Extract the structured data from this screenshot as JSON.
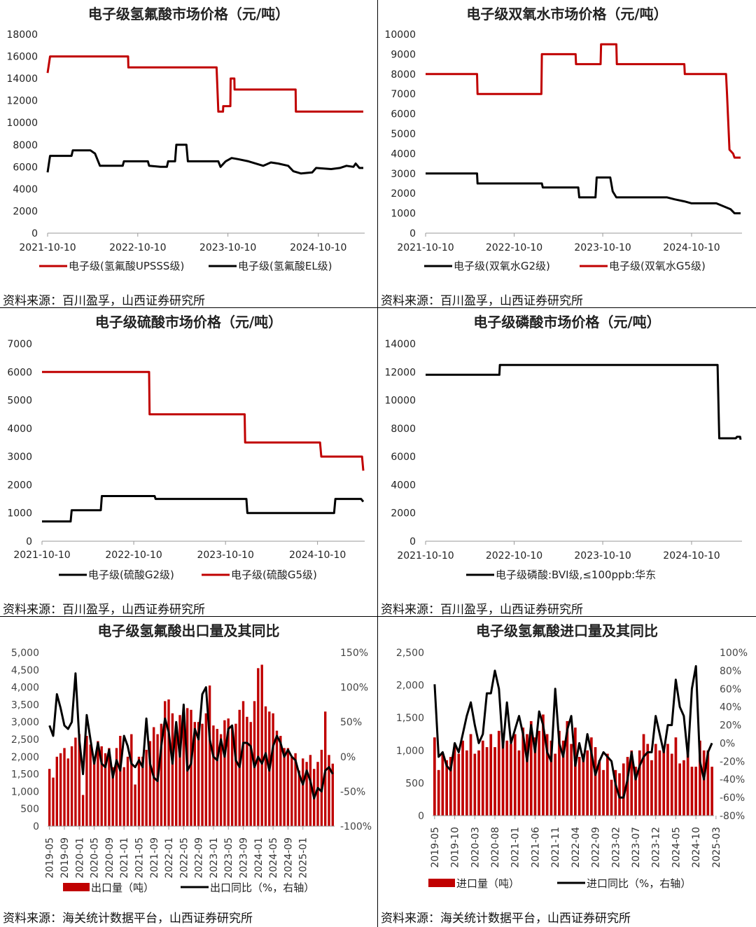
{
  "chart_data": [
    {
      "id": "p1",
      "type": "line",
      "title": "电子级氢氟酸市场价格（元/吨）",
      "source": "资料来源：百川盈孚，山西证券研究所",
      "x_ticks": [
        "2021-10-10",
        "2022-10-10",
        "2023-10-10",
        "2024-10-10"
      ],
      "y_ticks": [
        "0",
        "2000",
        "4000",
        "6000",
        "8000",
        "10000",
        "12000",
        "14000",
        "16000",
        "18000"
      ],
      "ylim": [
        0,
        18000
      ],
      "series": [
        {
          "name": "电子级(氢氟酸UPSSS级)",
          "color": "#c00000",
          "points": [
            [
              "2021-10-10",
              14500
            ],
            [
              "2021-10-20",
              16000
            ],
            [
              "2022-09-01",
              16000
            ],
            [
              "2022-09-02",
              15000
            ],
            [
              "2023-08-25",
              15000
            ],
            [
              "2023-09-01",
              11000
            ],
            [
              "2023-09-20",
              11000
            ],
            [
              "2023-09-21",
              11500
            ],
            [
              "2023-10-20",
              11500
            ],
            [
              "2023-10-21",
              14000
            ],
            [
              "2023-11-05",
              14000
            ],
            [
              "2023-11-06",
              13000
            ],
            [
              "2024-07-10",
              13000
            ],
            [
              "2024-07-11",
              11000
            ],
            [
              "2025-04-10",
              11000
            ]
          ]
        },
        {
          "name": "电子级(氢氟酸EL级)",
          "color": "#000000",
          "points": [
            [
              "2021-10-10",
              5500
            ],
            [
              "2021-10-20",
              7000
            ],
            [
              "2022-01-15",
              7000
            ],
            [
              "2022-01-20",
              7500
            ],
            [
              "2022-04-01",
              7500
            ],
            [
              "2022-04-20",
              7200
            ],
            [
              "2022-05-10",
              6100
            ],
            [
              "2022-08-10",
              6100
            ],
            [
              "2022-08-15",
              6500
            ],
            [
              "2022-11-20",
              6500
            ],
            [
              "2022-11-25",
              6100
            ],
            [
              "2023-01-10",
              6000
            ],
            [
              "2023-02-05",
              6000
            ],
            [
              "2023-02-10",
              6500
            ],
            [
              "2023-03-10",
              6500
            ],
            [
              "2023-03-15",
              8000
            ],
            [
              "2023-04-25",
              8000
            ],
            [
              "2023-05-01",
              6500
            ],
            [
              "2023-09-01",
              6500
            ],
            [
              "2023-09-10",
              6000
            ],
            [
              "2023-10-01",
              6500
            ],
            [
              "2023-10-25",
              6800
            ],
            [
              "2023-11-20",
              6700
            ],
            [
              "2024-01-01",
              6500
            ],
            [
              "2024-03-01",
              6100
            ],
            [
              "2024-04-01",
              6400
            ],
            [
              "2024-05-01",
              6300
            ],
            [
              "2024-06-10",
              6100
            ],
            [
              "2024-07-01",
              5600
            ],
            [
              "2024-08-01",
              5400
            ],
            [
              "2024-09-15",
              5500
            ],
            [
              "2024-10-01",
              5900
            ],
            [
              "2024-12-01",
              5800
            ],
            [
              "2025-01-05",
              5900
            ],
            [
              "2025-02-01",
              6100
            ],
            [
              "2025-03-01",
              6000
            ],
            [
              "2025-03-10",
              6300
            ],
            [
              "2025-03-25",
              5900
            ],
            [
              "2025-04-10",
              5900
            ]
          ]
        }
      ]
    },
    {
      "id": "p2",
      "type": "line",
      "title": "电子级双氧水市场价格（元/吨）",
      "source": "资料来源：百川盈孚，山西证券研究所",
      "x_ticks": [
        "2021-10-10",
        "2022-10-10",
        "2023-10-10",
        "2024-10-10"
      ],
      "y_ticks": [
        "0",
        "1000",
        "2000",
        "3000",
        "4000",
        "5000",
        "6000",
        "7000",
        "8000",
        "9000",
        "10000"
      ],
      "ylim": [
        0,
        10000
      ],
      "series": [
        {
          "name": "电子级(双氧水G2级)",
          "color": "#000000",
          "points": [
            [
              "2021-10-10",
              3000
            ],
            [
              "2022-05-10",
              3000
            ],
            [
              "2022-05-12",
              2500
            ],
            [
              "2023-02-01",
              2500
            ],
            [
              "2023-02-05",
              2300
            ],
            [
              "2023-07-01",
              2300
            ],
            [
              "2023-07-05",
              1800
            ],
            [
              "2023-09-10",
              1800
            ],
            [
              "2023-09-15",
              2800
            ],
            [
              "2023-11-10",
              2800
            ],
            [
              "2023-11-20",
              2100
            ],
            [
              "2023-12-05",
              1800
            ],
            [
              "2024-07-01",
              1800
            ],
            [
              "2024-08-01",
              1700
            ],
            [
              "2024-09-10",
              1600
            ],
            [
              "2024-10-10",
              1500
            ],
            [
              "2025-01-20",
              1500
            ],
            [
              "2025-03-01",
              1300
            ],
            [
              "2025-03-20",
              1200
            ],
            [
              "2025-04-05",
              1000
            ],
            [
              "2025-04-30",
              1000
            ]
          ]
        },
        {
          "name": "电子级(双氧水G5级)",
          "color": "#c00000",
          "points": [
            [
              "2021-10-10",
              8000
            ],
            [
              "2022-05-10",
              8000
            ],
            [
              "2022-05-12",
              7000
            ],
            [
              "2023-01-30",
              7000
            ],
            [
              "2023-02-01",
              9000
            ],
            [
              "2023-06-20",
              9000
            ],
            [
              "2023-06-22",
              8500
            ],
            [
              "2023-10-01",
              8500
            ],
            [
              "2023-10-03",
              9500
            ],
            [
              "2023-12-05",
              9500
            ],
            [
              "2023-12-07",
              8500
            ],
            [
              "2024-09-10",
              8500
            ],
            [
              "2024-09-12",
              8000
            ],
            [
              "2025-03-01",
              8000
            ],
            [
              "2025-03-05",
              7000
            ],
            [
              "2025-03-15",
              4200
            ],
            [
              "2025-03-30",
              4000
            ],
            [
              "2025-04-05",
              3800
            ],
            [
              "2025-04-30",
              3800
            ]
          ]
        }
      ]
    },
    {
      "id": "p3",
      "type": "line",
      "title": "电子级硫酸市场价格（元/吨）",
      "source": "资料来源：百川盈孚，山西证券研究所",
      "x_ticks": [
        "2021-10-10",
        "2022-10-10",
        "2023-10-10",
        "2024-10-10"
      ],
      "y_ticks": [
        "0",
        "1000",
        "2000",
        "3000",
        "4000",
        "5000",
        "6000",
        "7000"
      ],
      "ylim": [
        0,
        7000
      ],
      "series": [
        {
          "name": "电子级(硫酸G2级)",
          "color": "#000000",
          "points": [
            [
              "2021-10-10",
              700
            ],
            [
              "2022-02-01",
              700
            ],
            [
              "2022-02-05",
              1100
            ],
            [
              "2022-06-01",
              1100
            ],
            [
              "2022-06-05",
              1600
            ],
            [
              "2023-01-01",
              1600
            ],
            [
              "2023-01-05",
              1500
            ],
            [
              "2024-01-01",
              1500
            ],
            [
              "2024-01-05",
              1000
            ],
            [
              "2024-12-15",
              1000
            ],
            [
              "2024-12-20",
              1500
            ],
            [
              "2025-04-01",
              1500
            ],
            [
              "2025-04-10",
              1400
            ]
          ]
        },
        {
          "name": "电子级(硫酸G5级)",
          "color": "#c00000",
          "points": [
            [
              "2021-10-10",
              6000
            ],
            [
              "2022-12-10",
              6000
            ],
            [
              "2022-12-12",
              4500
            ],
            [
              "2023-12-25",
              4500
            ],
            [
              "2023-12-27",
              3500
            ],
            [
              "2024-10-20",
              3500
            ],
            [
              "2024-10-25",
              3000
            ],
            [
              "2025-04-05",
              3000
            ],
            [
              "2025-04-10",
              2500
            ]
          ]
        }
      ]
    },
    {
      "id": "p4",
      "type": "line",
      "title": "电子级磷酸市场价格（元/吨）",
      "source": "资料来源：百川盈孚，山西证券研究所",
      "x_ticks": [
        "2021-10-10",
        "2022-10-10",
        "2023-10-10",
        "2024-10-10"
      ],
      "y_ticks": [
        "0",
        "2000",
        "4000",
        "6000",
        "8000",
        "10000",
        "12000",
        "14000"
      ],
      "ylim": [
        0,
        14000
      ],
      "series": [
        {
          "name": "电子级磷酸:BVI级,≤100ppb:华东",
          "color": "#000000",
          "points": [
            [
              "2021-10-10",
              11800
            ],
            [
              "2022-08-10",
              11800
            ],
            [
              "2022-08-12",
              12500
            ],
            [
              "2025-01-25",
              12500
            ],
            [
              "2025-02-01",
              7300
            ],
            [
              "2025-04-10",
              7300
            ],
            [
              "2025-04-15",
              7400
            ],
            [
              "2025-04-28",
              7400
            ],
            [
              "2025-04-30",
              7200
            ]
          ]
        }
      ]
    },
    {
      "id": "p5",
      "type": "bar+line",
      "title": "电子级氢氟酸出口量及其同比",
      "source": "资料来源：海关统计数据平台，山西证券研究所",
      "start_month": "2019-05",
      "x_ticks": [
        "2019-05",
        "2019-09",
        "2020-01",
        "2020-05",
        "2020-09",
        "2021-01",
        "2021-05",
        "2021-09",
        "2022-01",
        "2022-05",
        "2022-09",
        "2023-01",
        "2023-05",
        "2023-09",
        "2024-01",
        "2024-05",
        "2024-09",
        "2025-01"
      ],
      "y_ticks": [
        "0",
        "500",
        "1,000",
        "1,500",
        "2,000",
        "2,500",
        "3,000",
        "3,500",
        "4,000",
        "4,500",
        "5,000"
      ],
      "ylim": [
        0,
        5000
      ],
      "y2_ticks": [
        "-100%",
        "-50%",
        "0%",
        "50%",
        "100%",
        "150%"
      ],
      "y2lim": [
        -100,
        150
      ],
      "series": [
        {
          "name": "出口量（吨）",
          "kind": "bar",
          "color": "#c00000",
          "values": [
            1650,
            1400,
            2000,
            2100,
            2250,
            1950,
            2300,
            2550,
            2650,
            900,
            2600,
            2350,
            1950,
            2450,
            2300,
            2100,
            2250,
            1700,
            2250,
            2600,
            1700,
            2000,
            2650,
            1200,
            2000,
            2000,
            2200,
            2450,
            2850,
            2650,
            2950,
            3600,
            3650,
            3250,
            2750,
            3200,
            3250,
            3400,
            3350,
            3000,
            3000,
            2950,
            3250,
            4050,
            2900,
            2800,
            2650,
            3050,
            3100,
            2850,
            2950,
            3350,
            3600,
            3150,
            3000,
            3600,
            4550,
            4650,
            3450,
            3300,
            3250,
            2750,
            2600,
            2250,
            2250,
            2000,
            2100,
            1600,
            1950,
            1850,
            2050,
            1650,
            1850,
            2200,
            3300,
            2050,
            1800
          ]
        },
        {
          "name": "出口同比（%，右轴）",
          "kind": "line",
          "color": "#000000",
          "values": [
            45,
            30,
            90,
            70,
            45,
            40,
            50,
            120,
            25,
            -25,
            60,
            25,
            -10,
            20,
            -10,
            -15,
            10,
            -30,
            -5,
            -20,
            30,
            15,
            -10,
            -15,
            -5,
            -15,
            55,
            -10,
            -30,
            -35,
            15,
            55,
            35,
            -10,
            50,
            0,
            75,
            -20,
            -10,
            40,
            25,
            90,
            100,
            25,
            0,
            -5,
            25,
            0,
            40,
            45,
            -5,
            -15,
            20,
            20,
            15,
            -15,
            0,
            -10,
            5,
            -20,
            15,
            30,
            20,
            0,
            10,
            0,
            -5,
            -25,
            -40,
            -20,
            -35,
            -60,
            -45,
            -50,
            -20,
            -15,
            -25
          ]
        }
      ]
    },
    {
      "id": "p6",
      "type": "bar+line",
      "title": "电子级氢氟酸进口量及其同比",
      "source": "资料来源：海关统计数据平台，山西证券研究所",
      "start_month": "2019-05",
      "x_ticks": [
        "2019-05",
        "2019-10",
        "2020-03",
        "2020-08",
        "2021-01",
        "2021-06",
        "2021-11",
        "2022-04",
        "2022-09",
        "2023-02",
        "2023-07",
        "2023-12",
        "2024-05",
        "2024-10",
        "2025-03"
      ],
      "y_ticks": [
        "0",
        "500",
        "1,000",
        "1,500",
        "2,000",
        "2,500"
      ],
      "ylim": [
        0,
        2500
      ],
      "y2_ticks": [
        "-80%",
        "-60%",
        "-40%",
        "-20%",
        "0%",
        "20%",
        "40%",
        "60%",
        "80%",
        "100%"
      ],
      "y2lim": [
        -80,
        100
      ],
      "series": [
        {
          "name": "进口量（吨）",
          "kind": "bar",
          "color": "#c00000",
          "values": [
            1200,
            700,
            950,
            850,
            900,
            1100,
            950,
            1150,
            1000,
            1250,
            950,
            1000,
            1150,
            1050,
            1250,
            1050,
            1300,
            1250,
            1150,
            1100,
            1250,
            1000,
            1350,
            1250,
            1450,
            1200,
            1300,
            1550,
            1250,
            1150,
            950,
            1300,
            1150,
            1450,
            1100,
            1350,
            900,
            950,
            1000,
            1200,
            1050,
            850,
            700,
            950,
            550,
            700,
            650,
            800,
            900,
            1000,
            750,
            1000,
            1250,
            1100,
            850,
            1100,
            1000,
            1000,
            1100,
            950,
            1200,
            800,
            850,
            1050,
            750,
            750,
            1150,
            1000,
            1000,
            750
          ]
        },
        {
          "name": "进口同比（%，右轴）",
          "kind": "line",
          "color": "#000000",
          "values": [
            65,
            -15,
            -10,
            -25,
            -30,
            0,
            -10,
            10,
            30,
            45,
            20,
            0,
            10,
            55,
            55,
            80,
            60,
            -5,
            45,
            0,
            15,
            30,
            10,
            -20,
            20,
            -10,
            35,
            20,
            -10,
            -20,
            60,
            0,
            -15,
            15,
            30,
            -25,
            0,
            -20,
            10,
            -10,
            -35,
            -20,
            -10,
            -15,
            -20,
            -45,
            -60,
            -60,
            -40,
            -10,
            -40,
            -25,
            -15,
            -10,
            -10,
            30,
            10,
            -10,
            20,
            20,
            70,
            40,
            30,
            -15,
            60,
            85,
            -20,
            -40,
            -10,
            0
          ]
        }
      ]
    }
  ]
}
